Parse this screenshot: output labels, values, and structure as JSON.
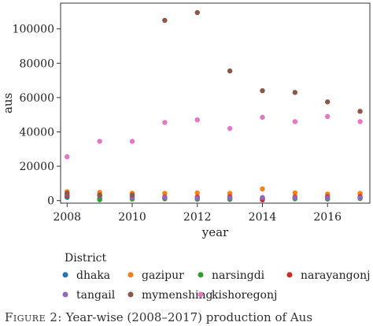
{
  "caption": {
    "prefix": "Figure 2:",
    "text": "Year-wise (2008–2017) production of Aus"
  },
  "chart_data": {
    "type": "scatter",
    "title": "",
    "xlabel": "year",
    "ylabel": "aus",
    "xlim": [
      2007.8,
      2017.3
    ],
    "ylim": [
      -1500,
      115000
    ],
    "xticks": [
      2008,
      2010,
      2012,
      2014,
      2016
    ],
    "yticks": [
      0,
      20000,
      40000,
      60000,
      80000,
      100000
    ],
    "grid": false,
    "legend": {
      "title": "District",
      "placement": "bottom"
    },
    "x": [
      2008,
      2009,
      2010,
      2011,
      2012,
      2013,
      2014,
      2015,
      2016,
      2017
    ],
    "series": [
      {
        "name": "dhaka",
        "color": "#1f77b4",
        "values": [
          1900,
          1300,
          1400,
          1300,
          1300,
          1200,
          1400,
          1500,
          1300,
          1600
        ]
      },
      {
        "name": "gazipur",
        "color": "#ff7f0e",
        "values": [
          5200,
          4800,
          4300,
          4200,
          4500,
          4200,
          6800,
          4500,
          3800,
          4200
        ]
      },
      {
        "name": "narsingdi",
        "color": "#2ca02c",
        "values": [
          2600,
          500,
          900,
          1000,
          800,
          700,
          1200,
          1000,
          900,
          1200
        ]
      },
      {
        "name": "narayangonj",
        "color": "#d62728",
        "values": [
          2900,
          2800,
          2500,
          2000,
          2100,
          2200,
          400,
          2100,
          2200,
          2300
        ]
      },
      {
        "name": "tangail",
        "color": "#9467bd",
        "values": [
          3800,
          2900,
          1900,
          1700,
          1500,
          1600,
          1800,
          1700,
          1600,
          1700
        ]
      },
      {
        "name": "mymenshing",
        "color": "#8c564b",
        "values": [
          4300,
          3300,
          3200,
          105000,
          109500,
          75500,
          64000,
          63000,
          57500,
          52000
        ]
      },
      {
        "name": "kishoregonj",
        "color": "#e377c2",
        "values": [
          25500,
          34500,
          34500,
          45500,
          47000,
          42000,
          48500,
          46000,
          49000,
          46000
        ]
      }
    ]
  }
}
